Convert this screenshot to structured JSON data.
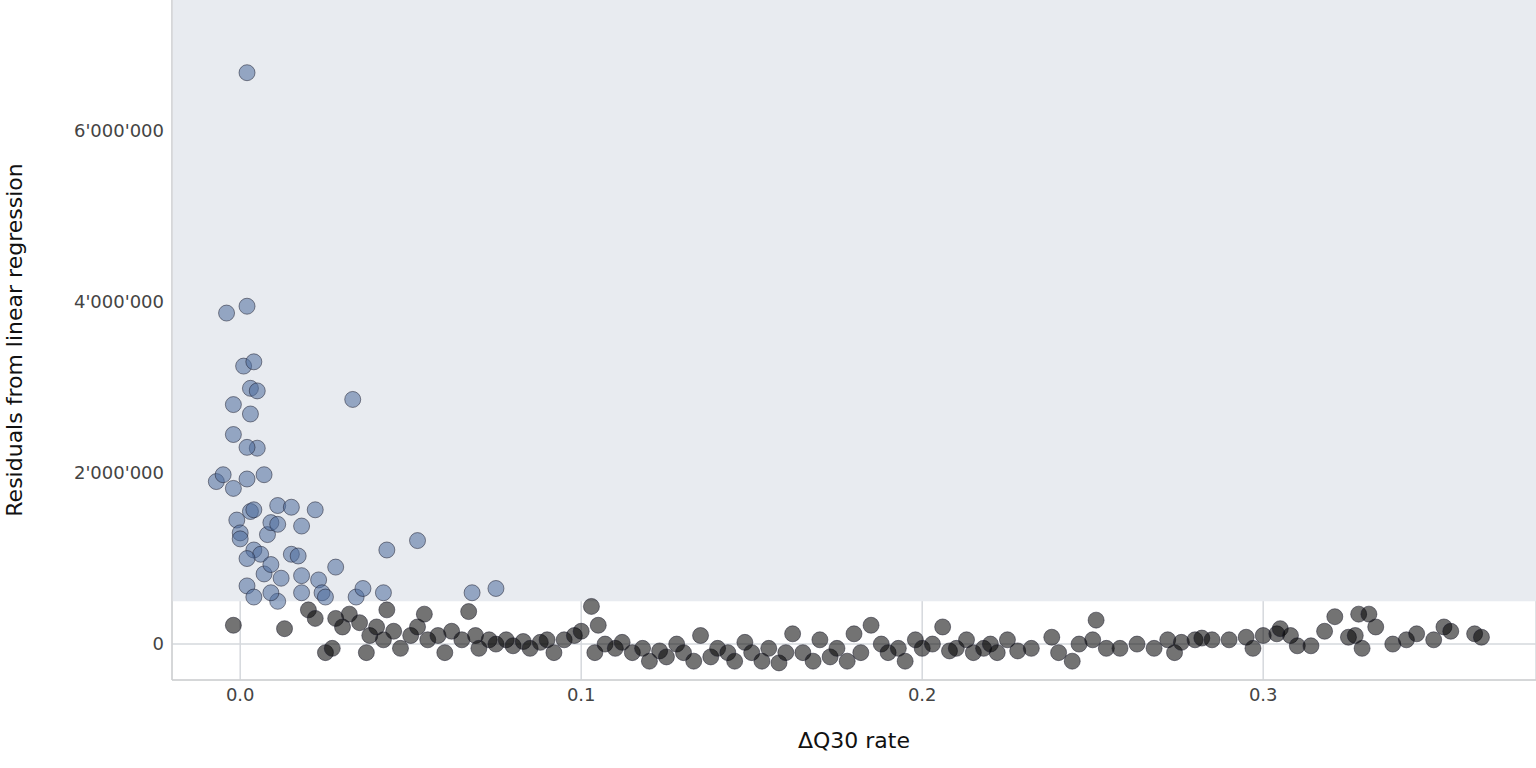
{
  "chart_data": {
    "type": "scatter",
    "x_label": "ΔQ30 rate",
    "y_label": "Residuals from linear regression",
    "xlim": [
      -0.02,
      0.38
    ],
    "ylim": [
      -420000,
      7530000
    ],
    "xticks": [
      {
        "value": 0,
        "label": "0.0"
      },
      0.1,
      0.2,
      0.3
    ],
    "yticks": [
      0,
      {
        "value": 2000000,
        "label": "2'000'000"
      },
      {
        "value": 4000000,
        "label": "4'000'000"
      },
      {
        "value": 6000000,
        "label": "6'000'000"
      }
    ],
    "grid": true,
    "shaded_band": [
      500000,
      7530000
    ],
    "series": [
      {
        "color": "#4c6c9c",
        "x": [
          -0.007,
          -0.005,
          -0.004,
          0.002,
          0.002,
          -0.002,
          -0.002,
          -0.002,
          0.001,
          0.004,
          0.003,
          0.005,
          0.003,
          0.005,
          0.002,
          0.007,
          0.002,
          -0.001,
          0.0,
          0.0,
          0.003,
          0.004,
          0.004,
          0.006,
          0.002,
          0.002,
          0.004,
          0.007,
          0.008,
          0.009,
          0.009,
          0.011,
          0.011,
          0.012,
          0.011,
          0.009,
          0.015,
          0.015,
          0.017,
          0.018,
          0.018,
          0.018,
          0.022,
          0.023,
          0.024,
          0.028,
          0.033,
          0.034,
          0.036,
          0.043,
          0.042,
          0.052,
          0.068,
          0.075,
          0.025
        ],
        "y": [
          1900000,
          1980000,
          3870000,
          3950000,
          6680000,
          2800000,
          2450000,
          1820000,
          3250000,
          3300000,
          2990000,
          2960000,
          2690000,
          2290000,
          2300000,
          1980000,
          1930000,
          1450000,
          1300000,
          1230000,
          1550000,
          1570000,
          1100000,
          1050000,
          1000000,
          680000,
          550000,
          820000,
          1280000,
          1420000,
          930000,
          1620000,
          1400000,
          770000,
          500000,
          600000,
          1600000,
          1050000,
          1030000,
          1380000,
          800000,
          600000,
          1570000,
          750000,
          600000,
          900000,
          2860000,
          550000,
          650000,
          1100000,
          600000,
          1210000,
          600000,
          650000,
          550000
        ]
      },
      {
        "color": "#000000",
        "x": [
          -0.002,
          0.013,
          0.02,
          0.022,
          0.025,
          0.027,
          0.028,
          0.03,
          0.032,
          0.035,
          0.037,
          0.038,
          0.04,
          0.042,
          0.043,
          0.045,
          0.047,
          0.05,
          0.052,
          0.054,
          0.055,
          0.058,
          0.06,
          0.062,
          0.065,
          0.067,
          0.069,
          0.07,
          0.073,
          0.075,
          0.078,
          0.08,
          0.083,
          0.085,
          0.088,
          0.09,
          0.092,
          0.095,
          0.098,
          0.1,
          0.103,
          0.105,
          0.104,
          0.107,
          0.11,
          0.112,
          0.115,
          0.118,
          0.12,
          0.123,
          0.125,
          0.128,
          0.13,
          0.133,
          0.135,
          0.138,
          0.14,
          0.143,
          0.145,
          0.148,
          0.15,
          0.153,
          0.155,
          0.158,
          0.16,
          0.162,
          0.165,
          0.168,
          0.17,
          0.173,
          0.175,
          0.178,
          0.18,
          0.182,
          0.185,
          0.188,
          0.19,
          0.193,
          0.195,
          0.198,
          0.2,
          0.203,
          0.206,
          0.208,
          0.21,
          0.213,
          0.215,
          0.218,
          0.22,
          0.222,
          0.225,
          0.228,
          0.232,
          0.238,
          0.24,
          0.244,
          0.246,
          0.25,
          0.251,
          0.254,
          0.258,
          0.263,
          0.268,
          0.272,
          0.274,
          0.276,
          0.28,
          0.282,
          0.285,
          0.29,
          0.295,
          0.297,
          0.3,
          0.304,
          0.305,
          0.308,
          0.31,
          0.314,
          0.318,
          0.321,
          0.325,
          0.327,
          0.328,
          0.329,
          0.331,
          0.333,
          0.338,
          0.342,
          0.345,
          0.35,
          0.353,
          0.355,
          0.362,
          0.364
        ],
        "y": [
          220000,
          180000,
          400000,
          300000,
          -100000,
          -50000,
          300000,
          200000,
          350000,
          250000,
          -100000,
          100000,
          200000,
          50000,
          400000,
          150000,
          -50000,
          100000,
          200000,
          350000,
          50000,
          100000,
          -100000,
          150000,
          50000,
          380000,
          100000,
          -50000,
          50000,
          0,
          50000,
          -20000,
          30000,
          -50000,
          20000,
          50000,
          -100000,
          50000,
          100000,
          150000,
          440000,
          220000,
          -100000,
          0,
          -50000,
          20000,
          -100000,
          -50000,
          -200000,
          -80000,
          -150000,
          0,
          -100000,
          -200000,
          100000,
          -150000,
          -50000,
          -100000,
          -200000,
          20000,
          -100000,
          -200000,
          -50000,
          -220000,
          -100000,
          120000,
          -100000,
          -200000,
          50000,
          -150000,
          -50000,
          -200000,
          120000,
          -100000,
          220000,
          0,
          -100000,
          -50000,
          -200000,
          50000,
          -50000,
          0,
          200000,
          -80000,
          -50000,
          50000,
          -100000,
          -50000,
          0,
          -100000,
          50000,
          -80000,
          -50000,
          80000,
          -100000,
          -200000,
          0,
          50000,
          280000,
          -50000,
          -50000,
          0,
          -50000,
          50000,
          -100000,
          20000,
          50000,
          70000,
          50000,
          50000,
          80000,
          -50000,
          100000,
          120000,
          180000,
          100000,
          -20000,
          -20000,
          150000,
          320000,
          80000,
          100000,
          350000,
          -50000,
          350000,
          200000,
          0,
          50000,
          120000,
          50000,
          200000,
          150000,
          120000,
          80000
        ]
      }
    ]
  }
}
